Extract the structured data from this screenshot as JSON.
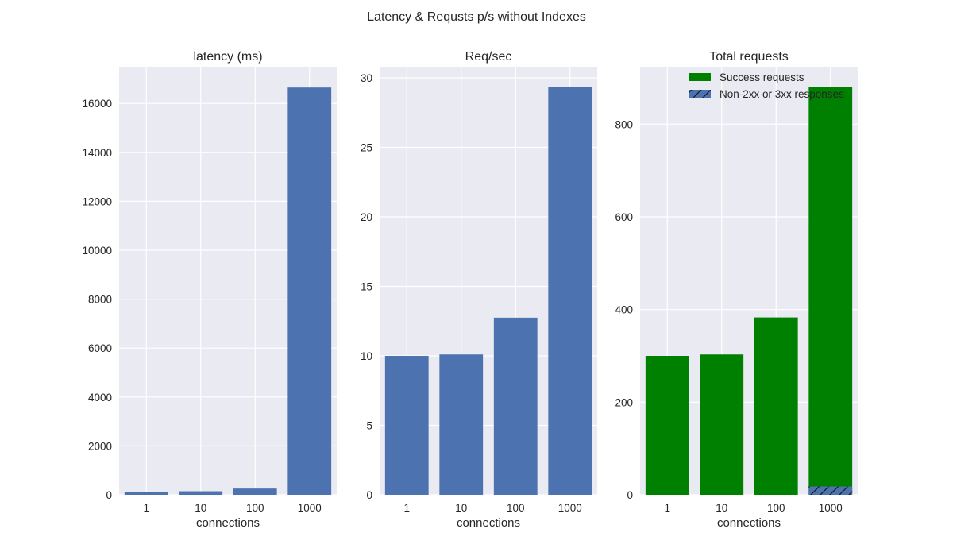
{
  "figure": {
    "title": "Latency & Requsts p/s without Indexes",
    "style": {
      "axes_bg": "#eaeaf2",
      "grid_color": "#ffffff",
      "bar_blue": "#4c72b0",
      "bar_green": "#008000",
      "text_color": "#262626"
    }
  },
  "chart_data": [
    {
      "type": "bar",
      "title": "latency (ms)",
      "xlabel": "connections",
      "ylabel": "",
      "categories": [
        "1",
        "10",
        "100",
        "1000"
      ],
      "values": [
        100,
        145,
        255,
        16650
      ],
      "ylim": [
        0,
        17500
      ],
      "yticks": [
        0,
        2000,
        4000,
        6000,
        8000,
        10000,
        12000,
        14000,
        16000
      ],
      "grid": true,
      "color": "#4c72b0"
    },
    {
      "type": "bar",
      "title": "Req/sec",
      "xlabel": "connections",
      "ylabel": "",
      "categories": [
        "1",
        "10",
        "100",
        "1000"
      ],
      "values": [
        10.0,
        10.1,
        12.75,
        29.35
      ],
      "ylim": [
        0,
        30.8
      ],
      "yticks": [
        0,
        5,
        10,
        15,
        20,
        25,
        30
      ],
      "grid": true,
      "color": "#4c72b0"
    },
    {
      "type": "bar",
      "title": "Total requests",
      "xlabel": "connections",
      "ylabel": "",
      "categories": [
        "1",
        "10",
        "100",
        "1000"
      ],
      "series": [
        {
          "name": "Success requests",
          "values": [
            300,
            303,
            383,
            880
          ],
          "color": "#008000",
          "hatch": false
        },
        {
          "name": "Non-2xx or 3xx responses",
          "values": [
            0,
            0,
            0,
            18
          ],
          "color": "#4c72b0",
          "hatch": true
        }
      ],
      "ylim": [
        0,
        924
      ],
      "yticks": [
        0,
        200,
        400,
        600,
        800
      ],
      "grid": true,
      "legend": "top-right"
    }
  ]
}
